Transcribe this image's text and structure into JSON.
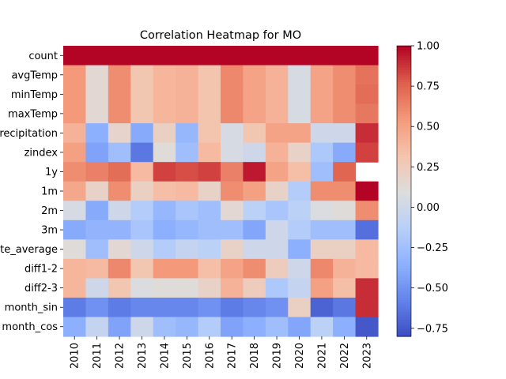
{
  "chart_data": {
    "type": "heatmap",
    "title": "Correlation Heatmap for MO",
    "xlabel": "",
    "ylabel": "",
    "x_categories": [
      "2010",
      "2011",
      "2012",
      "2013",
      "2014",
      "2015",
      "2016",
      "2017",
      "2018",
      "2019",
      "2020",
      "2021",
      "2022",
      "2023"
    ],
    "y_categories": [
      "count",
      "avgTemp",
      "minTemp",
      "maxTemp",
      "precipitation",
      "zindex",
      "1y",
      "1m",
      "2m",
      "3m",
      "climate_average",
      "diff1-2",
      "diff2-3",
      "month_sin",
      "month_cos"
    ],
    "colormap": "coolwarm",
    "vmin": -0.8,
    "vmax": 1.0,
    "colorbar_ticks": [
      "1.00",
      "0.75",
      "0.50",
      "0.25",
      "0.00",
      "−0.25",
      "−0.50",
      "−0.75"
    ],
    "colorbar_tick_values": [
      1.0,
      0.75,
      0.5,
      0.25,
      0.0,
      -0.25,
      -0.5,
      -0.75
    ],
    "values": [
      [
        1.0,
        1.0,
        1.0,
        1.0,
        1.0,
        1.0,
        1.0,
        1.0,
        1.0,
        1.0,
        1.0,
        1.0,
        1.0,
        1.0
      ],
      [
        0.55,
        0.15,
        0.6,
        0.3,
        0.4,
        0.42,
        0.32,
        0.62,
        0.5,
        0.42,
        0.05,
        0.5,
        0.6,
        0.7
      ],
      [
        0.55,
        0.15,
        0.6,
        0.3,
        0.4,
        0.42,
        0.32,
        0.62,
        0.5,
        0.42,
        0.05,
        0.5,
        0.6,
        0.72
      ],
      [
        0.55,
        0.15,
        0.6,
        0.3,
        0.4,
        0.42,
        0.32,
        0.62,
        0.5,
        0.42,
        0.05,
        0.5,
        0.6,
        0.68
      ],
      [
        0.42,
        -0.35,
        0.18,
        -0.38,
        0.22,
        -0.3,
        0.32,
        0.05,
        0.3,
        0.5,
        0.5,
        0.0,
        0.0,
        0.9
      ],
      [
        0.52,
        -0.42,
        -0.25,
        -0.62,
        0.12,
        -0.25,
        0.38,
        0.05,
        0.0,
        0.42,
        0.2,
        -0.18,
        -0.38,
        0.85
      ],
      [
        0.6,
        0.65,
        0.72,
        0.38,
        0.85,
        0.82,
        0.85,
        0.65,
        0.95,
        0.5,
        0.35,
        -0.25,
        0.75,
        null
      ],
      [
        0.48,
        0.2,
        0.6,
        0.22,
        0.35,
        0.38,
        0.2,
        0.6,
        0.52,
        0.2,
        -0.15,
        0.6,
        0.6,
        1.0
      ],
      [
        0.05,
        -0.38,
        0.0,
        -0.15,
        -0.3,
        -0.2,
        -0.25,
        0.15,
        -0.1,
        -0.2,
        -0.1,
        0.08,
        0.12,
        0.6
      ],
      [
        -0.38,
        -0.32,
        -0.32,
        -0.2,
        -0.35,
        -0.3,
        -0.25,
        -0.25,
        -0.4,
        0.0,
        -0.15,
        -0.25,
        -0.25,
        -0.65
      ],
      [
        0.12,
        -0.25,
        0.15,
        0.0,
        -0.15,
        -0.05,
        -0.1,
        0.2,
        0.0,
        0.0,
        -0.35,
        0.22,
        0.22,
        0.38
      ],
      [
        0.4,
        0.38,
        0.62,
        0.3,
        0.55,
        0.55,
        0.35,
        0.5,
        0.6,
        0.25,
        0.0,
        0.62,
        0.42,
        0.38
      ],
      [
        0.4,
        0.0,
        0.3,
        0.08,
        0.12,
        0.12,
        0.2,
        0.42,
        0.25,
        -0.18,
        -0.05,
        0.52,
        0.35,
        0.9
      ],
      [
        -0.6,
        -0.5,
        -0.6,
        -0.55,
        -0.55,
        -0.55,
        -0.5,
        -0.6,
        -0.55,
        -0.5,
        0.22,
        -0.7,
        -0.62,
        0.9
      ],
      [
        -0.35,
        -0.05,
        -0.42,
        0.0,
        -0.25,
        -0.3,
        -0.15,
        -0.42,
        -0.35,
        -0.25,
        -0.4,
        -0.1,
        -0.35,
        -0.75
      ]
    ]
  }
}
